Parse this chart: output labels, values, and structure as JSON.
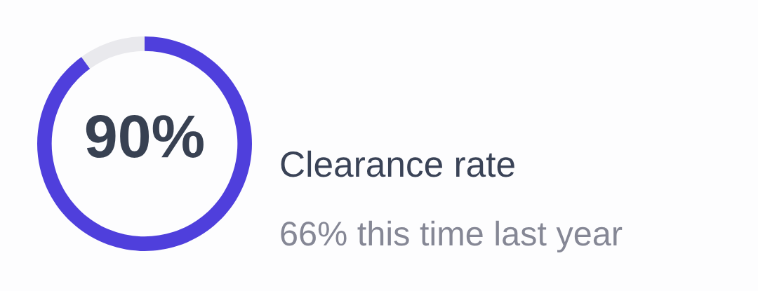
{
  "chart_data": {
    "type": "donut",
    "title": "Clearance rate",
    "subtitle": "66% this time last year",
    "categories": [
      null,
      null
    ],
    "values": [
      90,
      10
    ],
    "colors": [
      "#4f3fdc",
      "#e9e9ed"
    ],
    "value_labels": [
      "90%",
      null
    ]
  }
}
